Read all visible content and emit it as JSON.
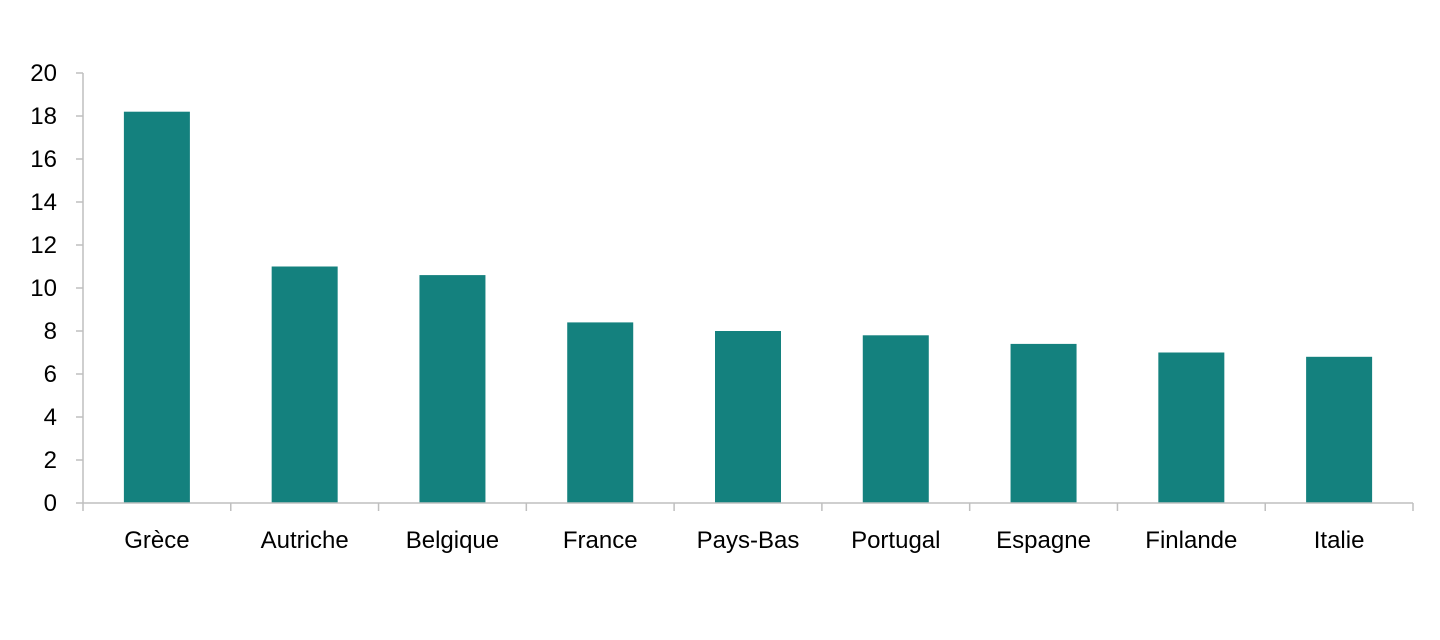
{
  "chart_data": {
    "type": "bar",
    "title": "",
    "xlabel": "",
    "ylabel": "",
    "categories": [
      "Grèce",
      "Autriche",
      "Belgique",
      "France",
      "Pays-Bas",
      "Portugal",
      "Espagne",
      "Finlande",
      "Italie"
    ],
    "values": [
      18.2,
      11.0,
      10.6,
      8.4,
      8.0,
      7.8,
      7.4,
      7.0,
      6.8
    ],
    "ylim": [
      0,
      20
    ],
    "yticks": [
      0,
      2,
      4,
      6,
      8,
      10,
      12,
      14,
      16,
      18,
      20
    ],
    "grid": false,
    "legend": "none",
    "bar_color": "#14817e",
    "axis_color": "#bfbfbf"
  }
}
